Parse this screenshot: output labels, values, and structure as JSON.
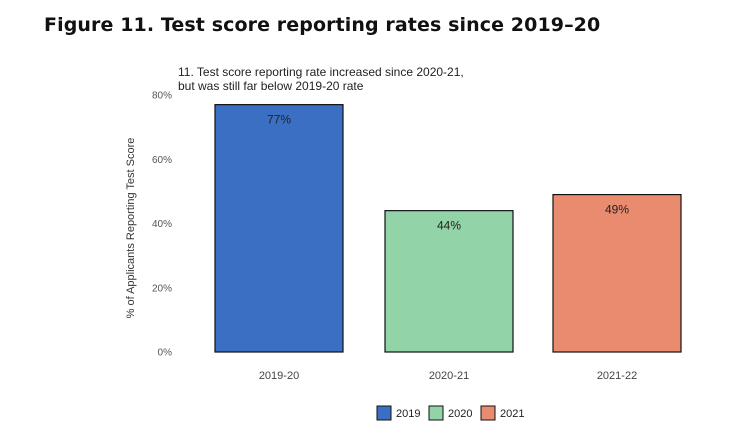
{
  "figure_title": "Figure 11. Test score reporting rates since 2019–20",
  "colors": {
    "2019": "#3b6fc4",
    "2020": "#93d3a8",
    "2021": "#e98b6e",
    "bar_stroke": "#111111",
    "axis_text": "#555555"
  },
  "chart_data": {
    "type": "bar",
    "title_lines": [
      "11. Test score reporting rate increased since 2020-21,",
      "but was still far below 2019-20 rate"
    ],
    "xlabel": "",
    "ylabel": "% of Applicants Reporting Test Score",
    "categories": [
      "2019-20",
      "2020-21",
      "2021-22"
    ],
    "values": [
      77,
      44,
      49
    ],
    "data_labels": [
      "77%",
      "44%",
      "49%"
    ],
    "ylim": [
      0,
      80
    ],
    "yticks": [
      0,
      20,
      40,
      60,
      80
    ],
    "ytick_labels": [
      "0%",
      "20%",
      "40%",
      "60%",
      "80%"
    ],
    "grid": false,
    "legend": {
      "placement": "bottom",
      "entries": [
        {
          "label": "2019",
          "color": "#3b6fc4"
        },
        {
          "label": "2020",
          "color": "#93d3a8"
        },
        {
          "label": "2021",
          "color": "#e98b6e"
        }
      ]
    }
  }
}
